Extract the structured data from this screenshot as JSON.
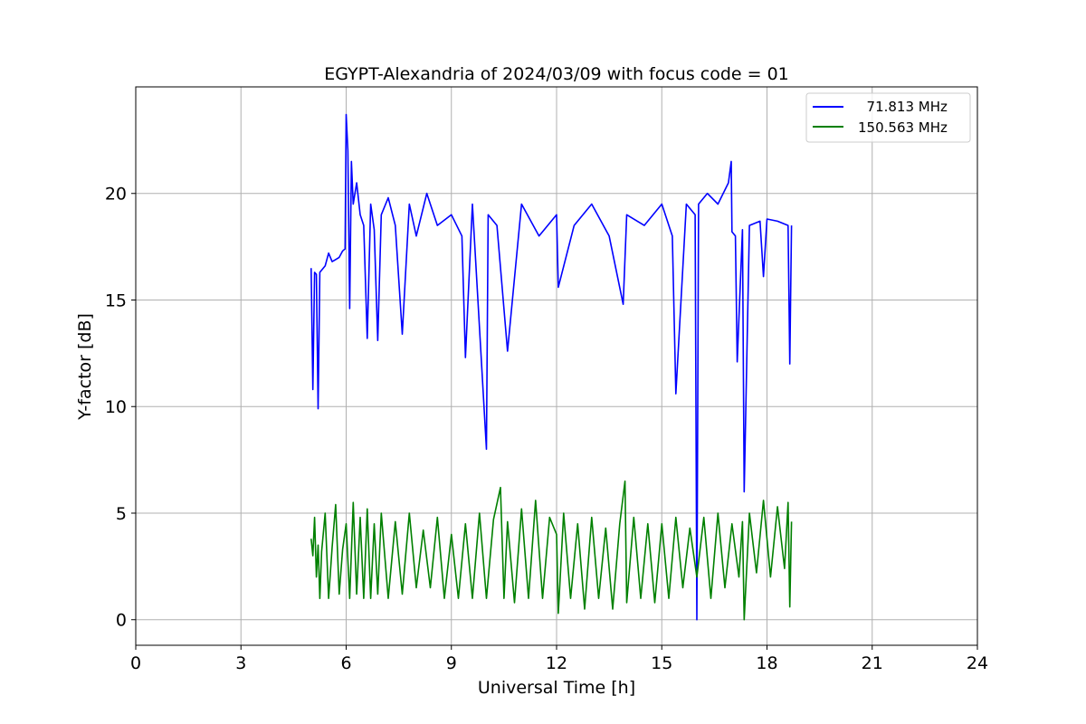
{
  "chart_data": {
    "type": "line",
    "title": "EGYPT-Alexandria of 2024/03/09 with focus code = 01",
    "xlabel": "Universal Time [h]",
    "ylabel": "Y-factor [dB]",
    "xlim": [
      0,
      24
    ],
    "ylim": [
      -1.2,
      25
    ],
    "xticks": [
      0,
      3,
      6,
      9,
      12,
      15,
      18,
      21,
      24
    ],
    "yticks": [
      0,
      5,
      10,
      15,
      20
    ],
    "grid": true,
    "legend_position": "top-right",
    "series": [
      {
        "name": "  71.813 MHz",
        "color": "#0000ff",
        "x": [
          5.0,
          5.05,
          5.1,
          5.15,
          5.2,
          5.25,
          5.3,
          5.4,
          5.5,
          5.6,
          5.7,
          5.8,
          5.9,
          5.97,
          6.0,
          6.05,
          6.1,
          6.15,
          6.2,
          6.3,
          6.4,
          6.5,
          6.6,
          6.7,
          6.8,
          6.9,
          7.0,
          7.2,
          7.4,
          7.6,
          7.8,
          8.0,
          8.3,
          8.6,
          9.0,
          9.3,
          9.4,
          9.6,
          10.0,
          10.05,
          10.3,
          10.6,
          11.0,
          11.5,
          12.0,
          12.05,
          12.5,
          13.0,
          13.5,
          13.9,
          14.0,
          14.5,
          15.0,
          15.3,
          15.4,
          15.7,
          15.95,
          16.0,
          16.05,
          16.3,
          16.6,
          16.9,
          16.98,
          17.0,
          17.1,
          17.15,
          17.3,
          17.35,
          17.5,
          17.8,
          17.9,
          18.0,
          18.3,
          18.6,
          18.65,
          18.7
        ],
        "values": [
          16.5,
          10.8,
          16.3,
          16.2,
          9.9,
          16.3,
          16.4,
          16.6,
          17.2,
          16.8,
          16.9,
          17.0,
          17.3,
          17.4,
          23.7,
          22.0,
          14.6,
          21.5,
          19.5,
          20.5,
          19.0,
          18.5,
          13.2,
          19.5,
          18.3,
          13.1,
          19.0,
          19.8,
          18.5,
          13.4,
          19.5,
          18.0,
          20.0,
          18.5,
          19.0,
          18.0,
          12.3,
          19.5,
          8.0,
          19.0,
          18.5,
          12.6,
          19.5,
          18.0,
          19.0,
          15.6,
          18.5,
          19.5,
          18.0,
          14.8,
          19.0,
          18.5,
          19.5,
          18.0,
          10.6,
          19.5,
          19.0,
          0.0,
          19.5,
          20.0,
          19.5,
          20.5,
          21.5,
          18.2,
          18.0,
          12.1,
          18.3,
          6.0,
          18.5,
          18.7,
          16.1,
          18.8,
          18.7,
          18.5,
          12.0,
          18.5
        ]
      },
      {
        "name": "150.563 MHz",
        "color": "#008000",
        "x": [
          5.0,
          5.05,
          5.1,
          5.15,
          5.2,
          5.25,
          5.3,
          5.4,
          5.5,
          5.6,
          5.7,
          5.8,
          5.9,
          6.0,
          6.1,
          6.2,
          6.3,
          6.4,
          6.5,
          6.6,
          6.7,
          6.8,
          6.9,
          7.0,
          7.2,
          7.4,
          7.6,
          7.8,
          8.0,
          8.2,
          8.4,
          8.6,
          8.8,
          9.0,
          9.2,
          9.4,
          9.6,
          9.8,
          10.0,
          10.2,
          10.4,
          10.5,
          10.6,
          10.8,
          11.0,
          11.2,
          11.4,
          11.6,
          11.8,
          12.0,
          12.05,
          12.2,
          12.4,
          12.6,
          12.8,
          13.0,
          13.2,
          13.4,
          13.6,
          13.8,
          13.95,
          14.0,
          14.2,
          14.4,
          14.6,
          14.8,
          15.0,
          15.2,
          15.4,
          15.6,
          15.8,
          16.0,
          16.2,
          16.4,
          16.6,
          16.8,
          17.0,
          17.2,
          17.3,
          17.35,
          17.5,
          17.7,
          17.9,
          18.1,
          18.3,
          18.5,
          18.6,
          18.65,
          18.7
        ],
        "values": [
          3.8,
          3.0,
          4.8,
          2.0,
          3.5,
          1.0,
          3.2,
          5.0,
          1.0,
          3.4,
          5.4,
          1.2,
          3.3,
          4.5,
          1.0,
          5.5,
          1.2,
          4.8,
          1.0,
          5.2,
          1.0,
          4.5,
          1.2,
          5.0,
          1.0,
          4.6,
          1.2,
          5.0,
          1.5,
          4.2,
          1.5,
          4.8,
          1.0,
          4.0,
          1.0,
          4.5,
          1.0,
          5.0,
          1.0,
          4.7,
          6.2,
          1.0,
          4.6,
          0.8,
          5.2,
          1.0,
          5.6,
          1.0,
          4.8,
          4.0,
          0.3,
          5.0,
          1.0,
          4.5,
          0.5,
          4.8,
          1.0,
          4.3,
          0.5,
          4.5,
          6.5,
          0.8,
          4.8,
          1.0,
          4.5,
          0.8,
          4.5,
          1.0,
          4.8,
          1.5,
          4.3,
          2.0,
          4.8,
          1.0,
          5.0,
          1.5,
          4.5,
          2.0,
          4.6,
          0.0,
          5.0,
          2.2,
          5.6,
          2.0,
          5.3,
          2.4,
          5.5,
          0.6,
          4.6
        ]
      }
    ]
  }
}
